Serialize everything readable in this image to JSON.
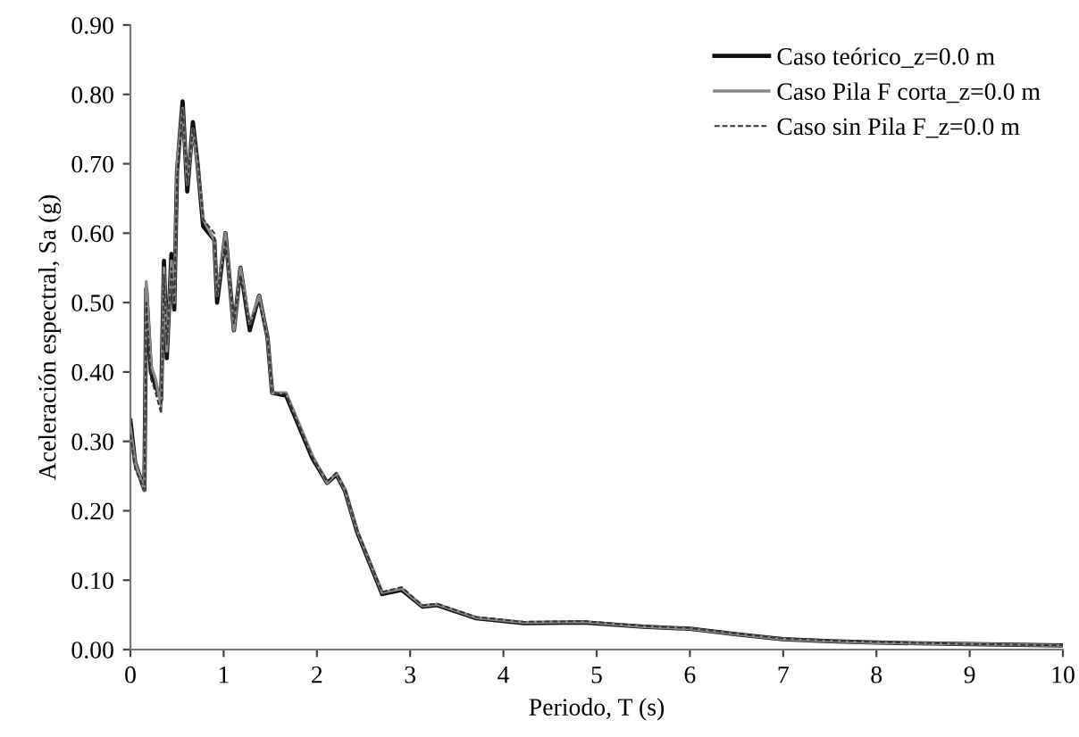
{
  "chart_data": {
    "type": "line",
    "xlabel": "Periodo, T (s)",
    "ylabel": "Aceleración espectral, Sa (g)",
    "x": [
      0,
      0.05,
      0.15,
      0.17,
      0.22,
      0.27,
      0.33,
      0.36,
      0.39,
      0.44,
      0.47,
      0.5,
      0.56,
      0.61,
      0.67,
      0.72,
      0.78,
      0.9,
      0.93,
      1.02,
      1.11,
      1.18,
      1.28,
      1.38,
      1.47,
      1.52,
      1.67,
      1.95,
      2.11,
      2.21,
      2.3,
      2.43,
      2.7,
      2.91,
      3.13,
      3.29,
      3.71,
      4.22,
      4.86,
      5.5,
      6,
      6.5,
      7,
      7.5,
      8,
      9,
      10
    ],
    "series": [
      {
        "name": "Caso teórico_z=0.0 m",
        "color": "#111111",
        "line_style": "solid",
        "values": [
          0.33,
          0.27,
          0.23,
          0.52,
          0.4,
          0.38,
          0.36,
          0.56,
          0.42,
          0.57,
          0.49,
          0.69,
          0.79,
          0.66,
          0.76,
          0.7,
          0.61,
          0.59,
          0.5,
          0.6,
          0.46,
          0.55,
          0.46,
          0.51,
          0.45,
          0.37,
          0.366,
          0.276,
          0.24,
          0.252,
          0.229,
          0.17,
          0.08,
          0.086,
          0.062,
          0.064,
          0.045,
          0.038,
          0.039,
          0.033,
          0.03,
          0.022,
          0.015,
          0.012,
          0.01,
          0.008,
          0.006
        ]
      },
      {
        "name": "Caso Pila F corta_z=0.0 m",
        "color": "#888888",
        "line_style": "solid",
        "values": [
          0.32,
          0.27,
          0.23,
          0.53,
          0.41,
          0.39,
          0.35,
          0.55,
          0.43,
          0.56,
          0.5,
          0.7,
          0.78,
          0.67,
          0.75,
          0.7,
          0.62,
          0.59,
          0.51,
          0.6,
          0.46,
          0.55,
          0.47,
          0.51,
          0.45,
          0.37,
          0.37,
          0.28,
          0.24,
          0.254,
          0.23,
          0.172,
          0.082,
          0.088,
          0.063,
          0.065,
          0.046,
          0.039,
          0.04,
          0.033,
          0.03,
          0.022,
          0.015,
          0.012,
          0.01,
          0.008,
          0.006
        ]
      },
      {
        "name": "Caso sin Pila F_z=0.0 m",
        "color": "#333333",
        "line_style": "dashed",
        "values": [
          0.31,
          0.26,
          0.23,
          0.5,
          0.39,
          0.37,
          0.34,
          0.54,
          0.44,
          0.55,
          0.5,
          0.68,
          0.78,
          0.67,
          0.75,
          0.71,
          0.62,
          0.6,
          0.51,
          0.59,
          0.47,
          0.54,
          0.47,
          0.5,
          0.45,
          0.37,
          0.368,
          0.278,
          0.242,
          0.255,
          0.231,
          0.173,
          0.083,
          0.09,
          0.064,
          0.066,
          0.047,
          0.04,
          0.041,
          0.034,
          0.031,
          0.023,
          0.016,
          0.013,
          0.011,
          0.008,
          0.006
        ]
      }
    ],
    "xlim": [
      0,
      10
    ],
    "xticks": [
      0,
      1,
      2,
      3,
      4,
      5,
      6,
      7,
      8,
      9,
      10
    ],
    "ylim": [
      0,
      0.9
    ],
    "yticks": [
      {
        "value": 0,
        "label": "0.00"
      },
      {
        "value": 0.1,
        "label": "0.10"
      },
      {
        "value": 0.2,
        "label": "0.20"
      },
      {
        "value": 0.3,
        "label": "0.30"
      },
      {
        "value": 0.4,
        "label": "0.40"
      },
      {
        "value": 0.5,
        "label": "0.50"
      },
      {
        "value": 0.6,
        "label": "0.60"
      },
      {
        "value": 0.7,
        "label": "0.70"
      },
      {
        "value": 0.8,
        "label": "0.80"
      },
      {
        "value": 0.9,
        "label": "0.90"
      }
    ],
    "grid": false,
    "legend": "top right"
  }
}
